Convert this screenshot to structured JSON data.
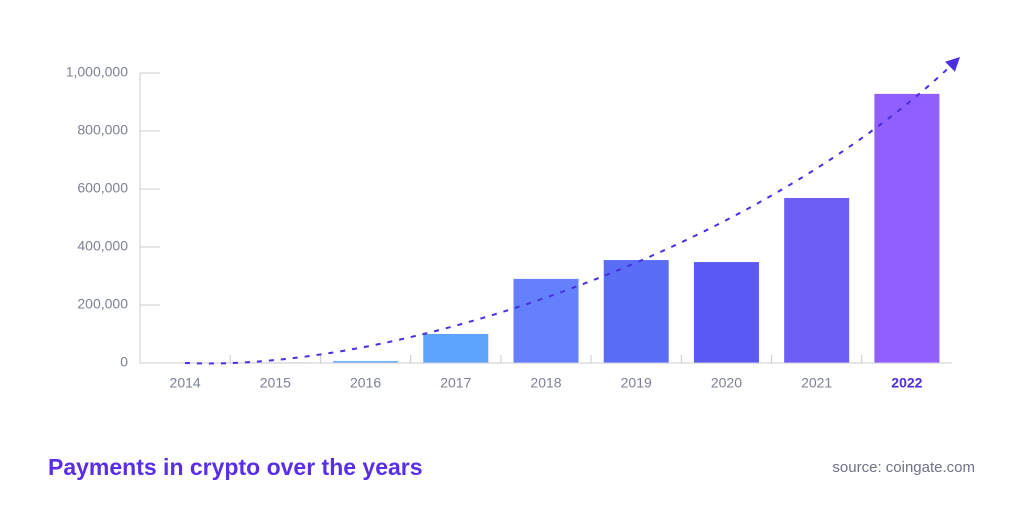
{
  "chart_data": {
    "type": "bar",
    "title": "Payments in crypto over the years",
    "source": "source: coingate.com",
    "categories": [
      "2014",
      "2015",
      "2016",
      "2017",
      "2018",
      "2019",
      "2020",
      "2021",
      "2022"
    ],
    "values": [
      0,
      2000,
      7000,
      100000,
      290000,
      355000,
      348000,
      569000,
      928000
    ],
    "colors": [
      "#8ec8ff",
      "#7ab8ff",
      "#6fb3ff",
      "#5ea3ff",
      "#6580ff",
      "#5a6ef5",
      "#5a59f5",
      "#6d5ff6",
      "#915ffe"
    ],
    "highlight": "2022",
    "ylim": [
      0,
      1000000
    ],
    "yticks": [
      0,
      {
        "value": 200000,
        "label": "200,000"
      },
      {
        "value": 400000,
        "label": "400,000"
      },
      {
        "value": 600000,
        "label": "600,000"
      },
      {
        "value": 800000,
        "label": "800,000"
      },
      {
        "value": 1000000,
        "label": "1,000,000"
      }
    ]
  }
}
